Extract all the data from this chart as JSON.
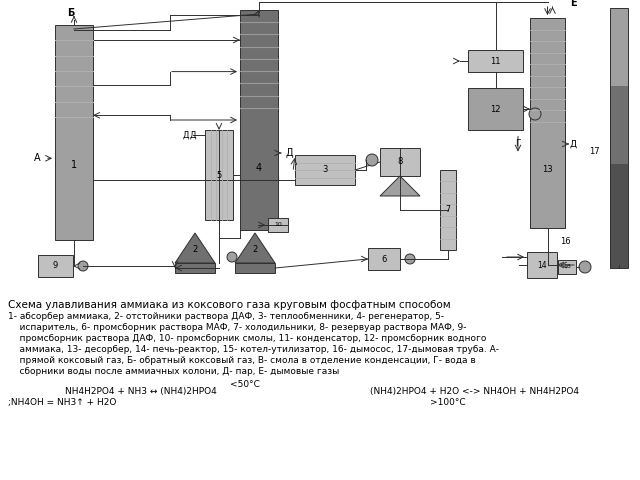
{
  "title": "Схема улавливания аммиака из коксового газа круговым фосфатным способом",
  "desc_line0": "1- абсорбер аммиака, 2- отстойники раствора ДАФ, 3- теплообменники, 4- регенератор, 5-",
  "desc_line1": "    испаритель, 6- промсборник раствора МАФ, 7- холодильники, 8- резервуар раствора МАФ, 9-",
  "desc_line2": "    промсборник раствора ДАФ, 10- промсборник смолы, 11- конденсатор, 12- промсборник водного",
  "desc_line3": "    аммиака, 13- десорбер, 14- печь-реактор, 15- котел-утилизатор, 16- дымосос, 17-дымовая труба. А-",
  "desc_line4": "    прямой коксовый газ, Б- обратный коксовый газ, В- смола в отделение конденсации, Г- вода в",
  "desc_line5": "    сборники воды после аммиачных колони, Д- пар, Е- дымовые газы",
  "formula0": "                              <50°С",
  "formula1": "        NH4H2PO4 + NH3 ↔ (NH4)2HPO4    (NH4)2HPO4 + H2O <-> NH4OH + NH4H2PO4",
  "formula2": ";NH4OH = NH3↑ + H2O                                      >100°С",
  "bg": "#ffffff",
  "c_light": "#c0c0c0",
  "c_mid": "#a0a0a0",
  "c_dark": "#707070",
  "c_vdark": "#505050",
  "c_line": "#303030",
  "c_stripe": "#888888"
}
